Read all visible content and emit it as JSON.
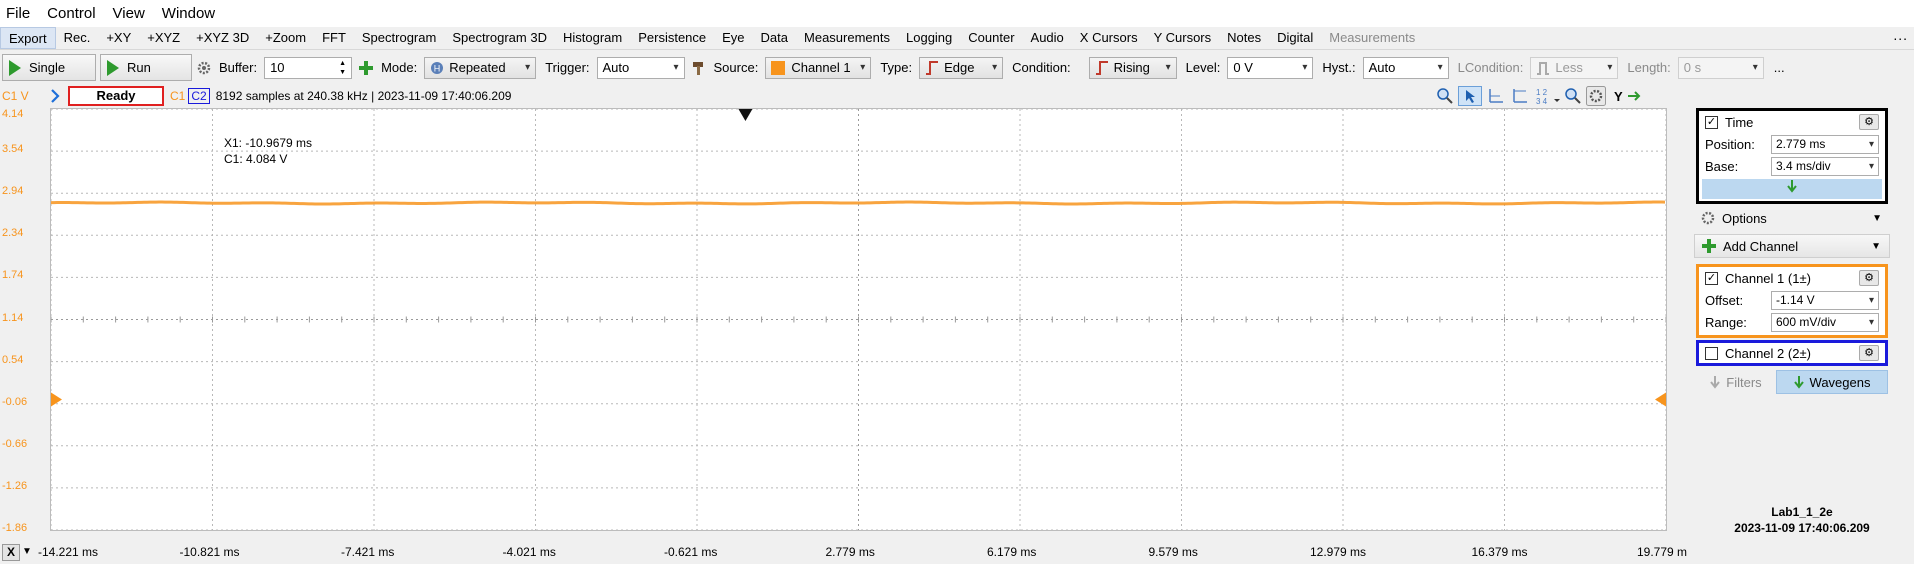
{
  "menu": [
    "File",
    "Control",
    "View",
    "Window"
  ],
  "tabs": [
    "Export",
    "Rec.",
    "+XY",
    "+XYZ",
    "+XYZ 3D",
    "+Zoom",
    "FFT",
    "Spectrogram",
    "Spectrogram 3D",
    "Histogram",
    "Persistence",
    "Eye",
    "Data",
    "Measurements",
    "Logging",
    "Counter",
    "Audio",
    "X Cursors",
    "Y Cursors",
    "Notes",
    "Digital",
    "Measurements"
  ],
  "tabs_more": "...",
  "toolbar": {
    "single_label": "Single",
    "run_label": "Run",
    "buffer_label": "Buffer:",
    "buffer_value": "10",
    "mode_label": "Mode:",
    "mode_value": "Repeated",
    "trigger_label": "Trigger:",
    "trigger_value": "Auto",
    "source_label": "Source:",
    "source_value": "Channel 1",
    "type_label": "Type:",
    "type_value": "Edge",
    "condition_label": "Condition:",
    "condition_value": "Rising",
    "level_label": "Level:",
    "level_value": "0 V",
    "hyst_label": "Hyst.:",
    "hyst_value": "Auto",
    "lcondition_label": "LCondition:",
    "lcondition_value": "Less",
    "length_label": "Length:",
    "length_value": "0 s",
    "more": "..."
  },
  "status": {
    "channel_unit": "C1 V",
    "state": "Ready",
    "c1": "C1",
    "c2": "C2",
    "info": "8192 samples at 240.38 kHz  |  2023-11-09 17:40:06.209"
  },
  "plot": {
    "y_ticks": [
      "4.14",
      "3.54",
      "2.94",
      "2.34",
      "1.74",
      "1.14",
      "0.54",
      "-0.06",
      "-0.66",
      "-1.26",
      "-1.86"
    ],
    "x_ticks": [
      "-14.221 ms",
      "-10.821 ms",
      "-7.421 ms",
      "-4.021 ms",
      "-0.621 ms",
      "2.779 ms",
      "6.179 ms",
      "9.579 ms",
      "12.979 ms",
      "16.379 ms",
      "19.779 m"
    ],
    "cursor_x": "X1: -10.9679 ms",
    "cursor_c1": "C1: 4.084 V",
    "trace_level_v": 2.8,
    "trace_color": "#f7941d"
  },
  "bottom": {
    "x_button": "X"
  },
  "panel": {
    "time_label": "Time",
    "position_label": "Position:",
    "position_value": "2.779 ms",
    "base_label": "Base:",
    "base_value": "3.4 ms/div",
    "options_label": "Options",
    "add_channel_label": "Add Channel",
    "ch1_label": "Channel 1 (1±)",
    "offset_label": "Offset:",
    "offset_value": "-1.14 V",
    "range_label": "Range:",
    "range_value": "600 mV/div",
    "ch2_label": "Channel 2 (2±)",
    "filters_label": "Filters",
    "wavegens_label": "Wavegens"
  },
  "footer": {
    "name": "Lab1_1_2e",
    "timestamp": "2023-11-09 17:40:06.209"
  },
  "colors": {
    "channel1": "#f7941d",
    "channel2": "#1a1adb",
    "ready_border": "#e02020",
    "time_box": "#000000"
  }
}
